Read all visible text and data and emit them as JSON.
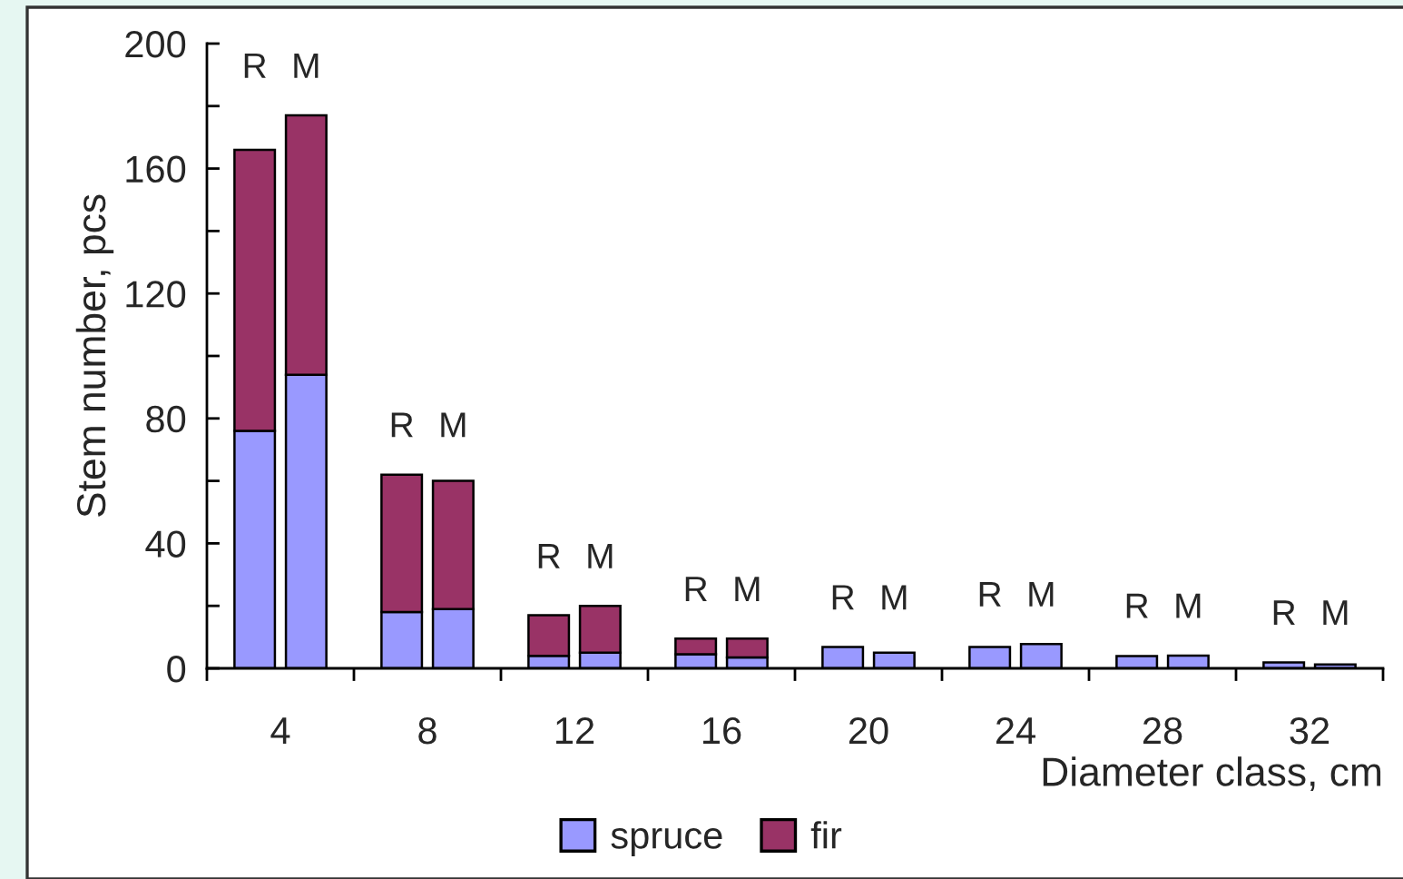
{
  "chart_data": {
    "type": "bar",
    "stacked": true,
    "xlabel": "Diameter class, cm",
    "ylabel": "Stem number, pcs",
    "x": [
      3.3,
      4.7,
      7.3,
      8.7,
      11.3,
      12.7,
      15.3,
      16.7,
      19.3,
      20.7,
      23.3,
      24.7,
      27.3,
      28.7,
      31.3,
      32.7
    ],
    "series": [
      {
        "name": "spruce",
        "color": "#9999ff",
        "values": [
          76,
          94,
          18,
          19,
          4,
          5,
          4.5,
          3.5,
          6.8,
          5,
          6.8,
          7.8,
          3.9,
          4.1,
          1.9,
          1.2
        ]
      },
      {
        "name": "fir",
        "color": "#993366",
        "values": [
          90,
          83,
          44,
          41,
          13,
          15,
          5,
          6,
          null,
          null,
          null,
          null,
          null,
          null,
          null,
          null
        ]
      }
    ],
    "xlim": [
      2,
      34
    ],
    "xticks": [
      {
        "value": 2,
        "label": null
      },
      {
        "value": 4,
        "label": "4"
      },
      {
        "value": 6,
        "label": null
      },
      {
        "value": 8,
        "label": "8"
      },
      {
        "value": 10,
        "label": null
      },
      {
        "value": 12,
        "label": "12"
      },
      {
        "value": 14,
        "label": null
      },
      {
        "value": 16,
        "label": "16"
      },
      {
        "value": 18,
        "label": null
      },
      {
        "value": 20,
        "label": "20"
      },
      {
        "value": 22,
        "label": null
      },
      {
        "value": 24,
        "label": "24"
      },
      {
        "value": 26,
        "label": null
      },
      {
        "value": 28,
        "label": "28"
      },
      {
        "value": 30,
        "label": null
      },
      {
        "value": 32,
        "label": "32"
      },
      {
        "value": 34,
        "label": null
      }
    ],
    "ylim": [
      0,
      200
    ],
    "yticks": [
      0,
      {
        "value": 20,
        "label": null
      },
      40,
      {
        "value": 60,
        "label": null
      },
      80,
      {
        "value": 100,
        "label": null
      },
      120,
      {
        "value": 140,
        "label": null
      },
      160,
      {
        "value": 180,
        "label": null
      },
      200
    ],
    "grid": false,
    "legend": "bottom",
    "annotations": [
      "R",
      "M",
      "R",
      "M",
      "R",
      "M",
      "R",
      "M",
      "R",
      "M",
      "R",
      "M",
      "R",
      "M",
      "R",
      "M"
    ]
  }
}
